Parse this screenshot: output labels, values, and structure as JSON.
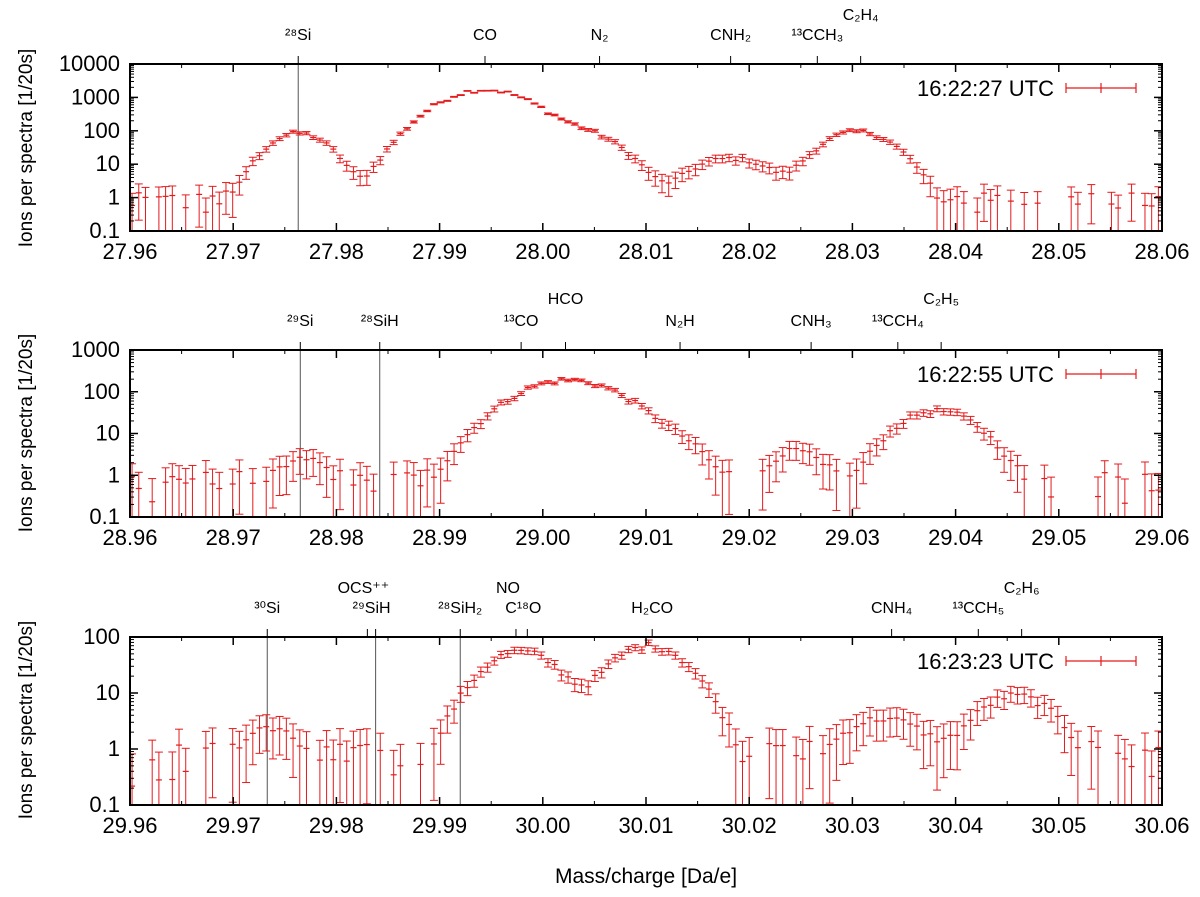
{
  "chart_data": {
    "xlabel": "Mass/charge [Da/e]",
    "ylabel": "Ions per spectra [1/20s]",
    "yscale": "log",
    "panels": [
      {
        "type": "scatter",
        "legend": "16:22:27 UTC",
        "legend_position": "top-right",
        "xlim": [
          27.96,
          28.06
        ],
        "ylim": [
          0.1,
          10000
        ],
        "x_ticks": [
          "27.96",
          "27.97",
          "27.98",
          "27.99",
          "28.00",
          "28.01",
          "28.02",
          "28.03",
          "28.04",
          "28.05",
          "28.06"
        ],
        "y_ticks": [
          "0.1",
          "1",
          "10",
          "100",
          "1000",
          "10000"
        ],
        "lines": [
          {
            "x": 27.9763,
            "label": "28Si"
          }
        ],
        "annotations": [
          {
            "x": 27.9763,
            "label": "²⁸Si"
          },
          {
            "x": 27.9944,
            "label": "CO"
          },
          {
            "x": 28.0055,
            "label": "N₂"
          },
          {
            "x": 28.0182,
            "label": "CNH₂"
          },
          {
            "x": 28.0266,
            "label": "¹³CCH₃"
          },
          {
            "x": 28.0308,
            "label": "C₂H₄"
          }
        ],
        "peaks": [
          {
            "c": 27.9763,
            "a": 85,
            "w": 0.0022
          },
          {
            "c": 27.9944,
            "a": 1700,
            "w": 0.0033
          },
          {
            "c": 28.003,
            "a": 100,
            "w": 0.003
          },
          {
            "c": 28.0182,
            "a": 15,
            "w": 0.003
          },
          {
            "c": 28.0305,
            "a": 95,
            "w": 0.0026
          }
        ],
        "baseline": 0.9,
        "step": 0.00065,
        "cut": 1.3
      },
      {
        "type": "scatter",
        "legend": "16:22:55 UTC",
        "legend_position": "top-right",
        "xlim": [
          28.96,
          29.06
        ],
        "ylim": [
          0.1,
          1000
        ],
        "x_ticks": [
          "28.96",
          "28.97",
          "28.98",
          "28.99",
          "29.00",
          "29.01",
          "29.02",
          "29.03",
          "29.04",
          "29.05",
          "29.06"
        ],
        "y_ticks": [
          "0.1",
          "1",
          "10",
          "100",
          "1000"
        ],
        "lines": [
          {
            "x": 28.9765,
            "label": "29Si"
          },
          {
            "x": 28.9842,
            "label": "28SiH"
          }
        ],
        "annotations": [
          {
            "x": 28.9765,
            "label": "²⁹Si"
          },
          {
            "x": 28.9842,
            "label": "²⁸SiH"
          },
          {
            "x": 28.9979,
            "label": "¹³CO"
          },
          {
            "x": 29.0022,
            "label": "HCO"
          },
          {
            "x": 29.0133,
            "label": "N₂H"
          },
          {
            "x": 29.026,
            "label": "CNH₃"
          },
          {
            "x": 29.0344,
            "label": "¹³CCH₄"
          },
          {
            "x": 29.0386,
            "label": "C₂H₅"
          }
        ],
        "peaks": [
          {
            "c": 28.977,
            "a": 2.5,
            "w": 0.002
          },
          {
            "c": 29.0025,
            "a": 190,
            "w": 0.004
          },
          {
            "c": 29.0125,
            "a": 5,
            "w": 0.0025
          },
          {
            "c": 29.0245,
            "a": 4,
            "w": 0.002
          },
          {
            "c": 29.0382,
            "a": 35,
            "w": 0.003
          }
        ],
        "baseline": 0.8,
        "step": 0.00065,
        "cut": 1.2
      },
      {
        "type": "scatter",
        "legend": "16:23:23 UTC",
        "legend_position": "top-right",
        "xlim": [
          29.96,
          30.06
        ],
        "ylim": [
          0.1,
          100
        ],
        "x_ticks": [
          "29.96",
          "29.97",
          "29.98",
          "29.99",
          "30.00",
          "30.01",
          "30.02",
          "30.03",
          "30.04",
          "30.05",
          "30.06"
        ],
        "y_ticks": [
          "0.1",
          "1",
          "10",
          "100"
        ],
        "lines": [
          {
            "x": 29.9733,
            "label": "30Si"
          },
          {
            "x": 29.9838,
            "label": "29SiH"
          },
          {
            "x": 29.992,
            "label": "28SiH2"
          }
        ],
        "annotations": [
          {
            "x": 29.9733,
            "label": "³⁰Si"
          },
          {
            "x": 29.983,
            "label": "OCS⁺⁺"
          },
          {
            "x": 29.9838,
            "label": "²⁹SiH"
          },
          {
            "x": 29.992,
            "label": "²⁸SiH₂"
          },
          {
            "x": 29.9974,
            "label": "NO"
          },
          {
            "x": 29.9985,
            "label": "C¹⁸O"
          },
          {
            "x": 30.0106,
            "label": "H₂CO"
          },
          {
            "x": 30.0338,
            "label": "CNH₄"
          },
          {
            "x": 30.0422,
            "label": "¹³CCH₅"
          },
          {
            "x": 30.0464,
            "label": "C₂H₆"
          }
        ],
        "peaks": [
          {
            "c": 29.9735,
            "a": 2.5,
            "w": 0.0022
          },
          {
            "c": 29.9978,
            "a": 55,
            "w": 0.003
          },
          {
            "c": 30.0103,
            "a": 70,
            "w": 0.003
          },
          {
            "c": 30.033,
            "a": 3.5,
            "w": 0.0035
          },
          {
            "c": 30.0458,
            "a": 9,
            "w": 0.003
          }
        ],
        "baseline": 0.8,
        "step": 0.00065,
        "cut": 1.0
      }
    ]
  },
  "colors": {
    "series": "#e41a1c",
    "axis": "#000000",
    "marker_line": "#555555"
  }
}
